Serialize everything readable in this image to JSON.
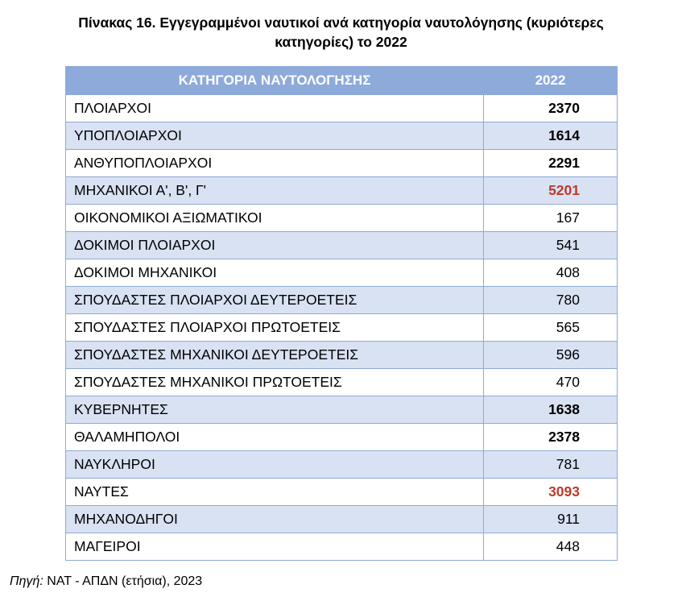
{
  "title": {
    "line1": "Πίνακας 16. Εγγεγραμμένοι ναυτικοί ανά κατηγορία  ναυτολόγησης (κυριότερες",
    "line2": "κατηγορίες) το 2022"
  },
  "table": {
    "headers": [
      "ΚΑΤΗΓΟΡΙΑ ΝΑΥΤΟΛΟΓΗΣΗΣ",
      "2022"
    ],
    "header_color": "#8eaadb",
    "alt_row_color": "#d9e2f3",
    "highlight_color": "#c0392b",
    "rows": [
      {
        "category": "ΠΛΟΙΑΡΧΟΙ",
        "value": "2370",
        "style": "bold"
      },
      {
        "category": "ΥΠΟΠΛΟΙΑΡΧΟΙ",
        "value": "1614",
        "style": "bold"
      },
      {
        "category": "ΑΝΘΥΠΟΠΛΟΙΑΡΧΟΙ",
        "value": "2291",
        "style": "bold"
      },
      {
        "category": "ΜΗΧΑΝΙΚΟΙ Α', Β', Γ'",
        "value": "5201",
        "style": "red"
      },
      {
        "category": "ΟΙΚΟΝΟΜΙΚΟΙ ΑΞΙΩΜΑΤΙΚΟΙ",
        "value": "167",
        "style": "normal"
      },
      {
        "category": "ΔΟΚΙΜΟΙ ΠΛΟΙΑΡΧΟΙ",
        "value": "541",
        "style": "normal"
      },
      {
        "category": "ΔΟΚΙΜΟΙ ΜΗΧΑΝΙΚΟΙ",
        "value": "408",
        "style": "normal"
      },
      {
        "category": "ΣΠΟΥΔΑΣΤΕΣ ΠΛΟΙΑΡΧΟΙ ΔΕΥΤΕΡΟΕΤΕΙΣ",
        "value": "780",
        "style": "normal"
      },
      {
        "category": "ΣΠΟΥΔΑΣΤΕΣ ΠΛΟΙΑΡΧΟΙ ΠΡΩΤΟΕΤΕΙΣ",
        "value": "565",
        "style": "normal"
      },
      {
        "category": "ΣΠΟΥΔΑΣΤΕΣ ΜΗΧΑΝΙΚΟΙ ΔΕΥΤΕΡΟΕΤΕΙΣ",
        "value": "596",
        "style": "normal"
      },
      {
        "category": "ΣΠΟΥΔΑΣΤΕΣ ΜΗΧΑΝΙΚΟΙ ΠΡΩΤΟΕΤΕΙΣ",
        "value": "470",
        "style": "normal"
      },
      {
        "category": "ΚΥΒΕΡΝΗΤΕΣ",
        "value": "1638",
        "style": "bold"
      },
      {
        "category": "ΘΑΛΑΜΗΠΟΛΟΙ",
        "value": "2378",
        "style": "bold"
      },
      {
        "category": "ΝΑΥΚΛΗΡΟΙ",
        "value": "781",
        "style": "normal"
      },
      {
        "category": "ΝΑΥΤΕΣ",
        "value": "3093",
        "style": "red"
      },
      {
        "category": "ΜΗΧΑΝΟΔΗΓΟΙ",
        "value": "911",
        "style": "normal"
      },
      {
        "category": "ΜΑΓΕΙΡΟΙ",
        "value": "448",
        "style": "normal"
      }
    ]
  },
  "source": {
    "label": "Πηγή:",
    "text": " ΝΑΤ - ΑΠΔΝ (ετήσια), 2023"
  }
}
